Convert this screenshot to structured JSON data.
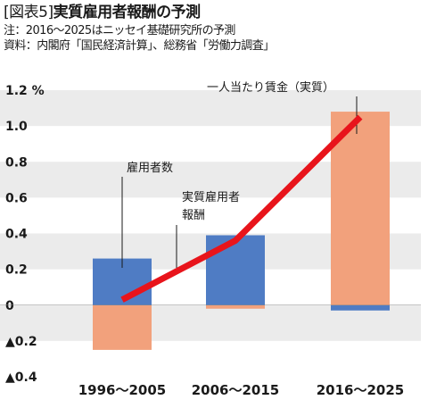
{
  "header": {
    "figure_tag": "[図表5]",
    "title": "実質雇用者報酬の予測",
    "note": "注：2016～2025はニッセイ基礎研究所の予測",
    "source": "資料：内閣府「国民経済計算」、総務省「労働力調査」"
  },
  "chart_data": {
    "type": "bar",
    "categories": [
      "1996～2005",
      "2006～2015",
      "2016～2025"
    ],
    "series": [
      {
        "name": "雇用者数",
        "kind": "bar",
        "color": "#4f7cc4",
        "values": [
          0.26,
          0.39,
          -0.03
        ]
      },
      {
        "name": "一人当たり賃金（実質）",
        "kind": "bar",
        "color": "#f2a17c",
        "values": [
          -0.25,
          -0.02,
          1.08
        ]
      },
      {
        "name": "実質雇用者報酬",
        "kind": "line",
        "color": "#e8141b",
        "values": [
          0.03,
          0.36,
          1.05
        ]
      }
    ],
    "annotations": {
      "employees": "雇用者数",
      "total_line1": "実質雇用者",
      "total_line2": "報酬",
      "wage": "一人当たり賃金（実質）"
    },
    "ylim": [
      -0.4,
      1.2
    ],
    "yticks": [
      {
        "value": 1.2,
        "label": "1.2 %"
      },
      {
        "value": 1.0,
        "label": "1.0"
      },
      {
        "value": 0.8,
        "label": "0.8"
      },
      {
        "value": 0.6,
        "label": "0.6"
      },
      {
        "value": 0.4,
        "label": "0.4"
      },
      {
        "value": 0.2,
        "label": "0.2"
      },
      {
        "value": 0.0,
        "label": "0"
      },
      {
        "value": -0.2,
        "label": "▲0.2"
      },
      {
        "value": -0.4,
        "label": "▲0.4"
      }
    ],
    "title": "実質雇用者報酬の予測",
    "xlabel": "",
    "ylabel": "%",
    "stacked": true,
    "grid": "alternating bands",
    "band_color": "#ebebeb"
  }
}
